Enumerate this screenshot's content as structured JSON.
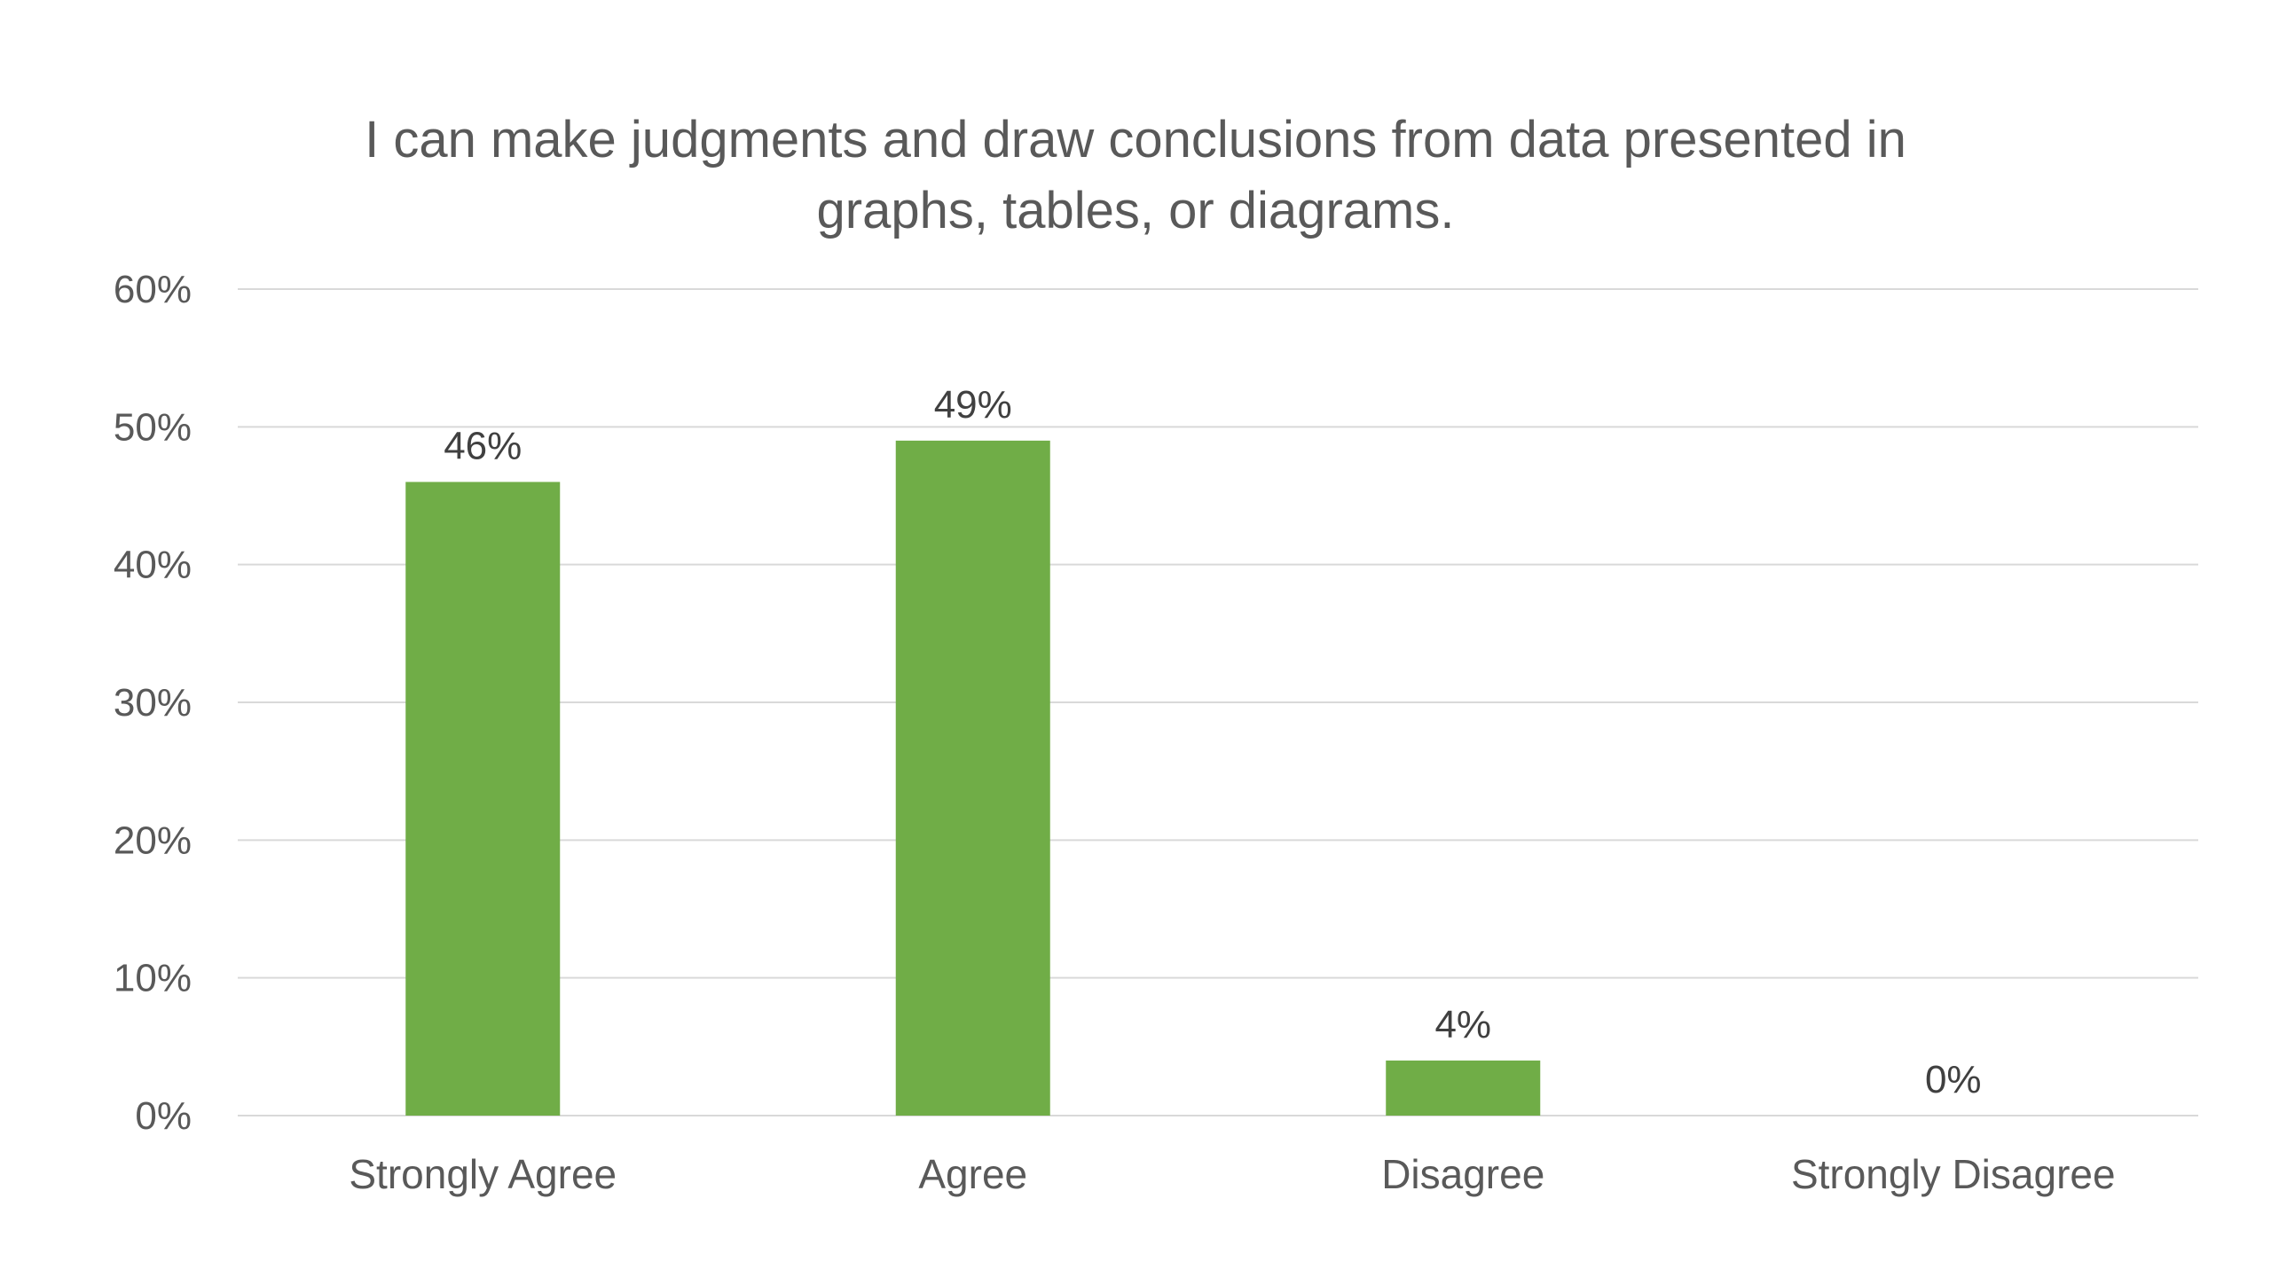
{
  "chart_data": {
    "type": "bar",
    "title": "I can make judgments and draw conclusions from data presented in graphs, tables, or diagrams.",
    "title_lines": [
      "I can make judgments and draw conclusions from data presented in",
      "graphs, tables, or diagrams."
    ],
    "categories": [
      "Strongly Agree",
      "Agree",
      "Disagree",
      "Strongly Disagree"
    ],
    "values": [
      46,
      49,
      4,
      0
    ],
    "value_labels": [
      "46%",
      "49%",
      "4%",
      "0%"
    ],
    "ylim": [
      0,
      60
    ],
    "yticks": [
      0,
      10,
      20,
      30,
      40,
      50,
      60
    ],
    "ytick_labels": [
      "0%",
      "10%",
      "20%",
      "30%",
      "40%",
      "50%",
      "60%"
    ],
    "xlabel": "",
    "ylabel": "",
    "grid": true,
    "legend": "none",
    "bar_color": "#70AD47",
    "grid_color": "#D9D9D9",
    "text_color": "#595959"
  }
}
